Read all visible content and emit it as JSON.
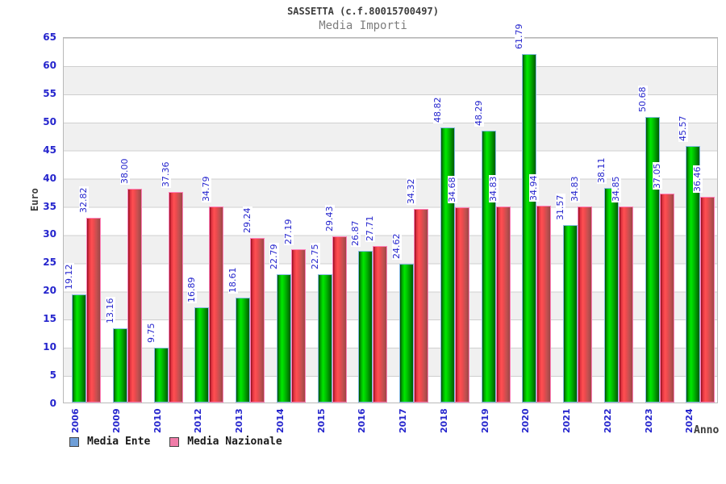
{
  "header": {
    "title": "SASSETTA (c.f.80015700497)",
    "subtitle": "Media Importi"
  },
  "chart_data": {
    "type": "bar",
    "title": "SASSETTA (c.f.80015700497)",
    "subtitle": "Media Importi",
    "xlabel": "Anno",
    "ylabel": "Euro",
    "ylim": [
      0,
      65
    ],
    "ytick_step": 5,
    "yticks": [
      0,
      5,
      10,
      15,
      20,
      25,
      30,
      35,
      40,
      45,
      50,
      55,
      60,
      65
    ],
    "grid": "horizontal-bands",
    "legend_position": "bottom-left",
    "categories": [
      "2006",
      "2009",
      "2010",
      "2012",
      "2013",
      "2014",
      "2015",
      "2016",
      "2017",
      "2018",
      "2019",
      "2020",
      "2021",
      "2022",
      "2023",
      "2024"
    ],
    "series": [
      {
        "name": "Media Ente",
        "values": [
          19.12,
          13.16,
          9.75,
          16.89,
          18.61,
          22.79,
          22.75,
          26.87,
          24.62,
          48.82,
          48.29,
          61.79,
          31.57,
          38.11,
          50.68,
          45.57
        ]
      },
      {
        "name": "Media Nazionale",
        "values": [
          32.82,
          38.0,
          37.36,
          34.79,
          29.24,
          27.19,
          29.43,
          27.71,
          34.32,
          34.68,
          34.83,
          34.94,
          34.83,
          34.85,
          37.05,
          36.46
        ]
      }
    ]
  },
  "legend": {
    "items": [
      {
        "label": "Media Ente",
        "swatch_color": "#6f9fd8"
      },
      {
        "label": "Media Nazionale",
        "swatch_color": "#f07ca8"
      }
    ]
  },
  "colors": {
    "bar_ente_main": "#00cd00",
    "bar_ente_border": "#85bbe2",
    "bar_nazionale_main": "#ef4a4e",
    "bar_nazionale_border": "#ff7fb8",
    "value_text": "#2525cd",
    "tick_text": "#2525cd",
    "band_gray": "#f0f0f0",
    "plot_border": "#b9b9b9"
  }
}
